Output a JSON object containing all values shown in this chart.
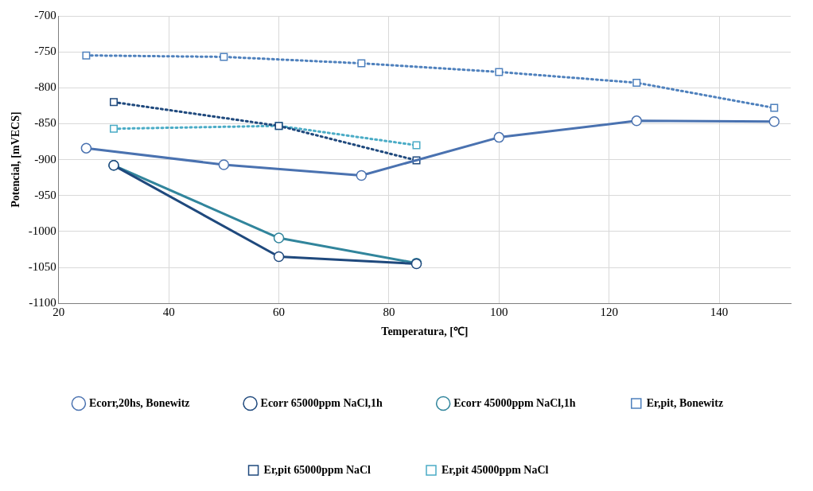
{
  "chart_data": {
    "type": "line",
    "xlabel": "Temperatura, [℃]",
    "ylabel": "Potencial, [mVECS]",
    "xlim": [
      20,
      153
    ],
    "xticks": [
      20,
      40,
      60,
      80,
      100,
      120,
      140
    ],
    "ylim": [
      -1100,
      -700
    ],
    "yticks": [
      -1100,
      -1050,
      -1000,
      -950,
      -900,
      -850,
      -800,
      -750,
      -700
    ],
    "grid": true,
    "legend": "bottom",
    "series": [
      {
        "name": "Ecorr,20hs, Bonewitz",
        "color": "#4a72b0",
        "x": [
          25,
          50,
          75,
          100,
          125,
          150
        ],
        "values": [
          -884,
          -907,
          -922,
          -869,
          -846,
          -847
        ],
        "marker": "circle",
        "line_style": "solid"
      },
      {
        "name": "Ecorr 65000ppm NaCl,1h",
        "color": "#1f497d",
        "x": [
          30,
          60,
          85
        ],
        "values": [
          -908,
          -1035,
          -1045
        ],
        "marker": "circle",
        "line_style": "solid"
      },
      {
        "name": "Ecorr 45000ppm NaCl,1h",
        "color": "#31859c",
        "x": [
          30,
          60,
          85
        ],
        "values": [
          -908,
          -1009,
          -1044
        ],
        "marker": "circle",
        "line_style": "solid"
      },
      {
        "name": "Er,pit, Bonewitz",
        "color": "#4f81bd",
        "x": [
          25,
          50,
          75,
          100,
          125,
          150
        ],
        "values": [
          -755,
          -757,
          -766,
          -778,
          -793,
          -828
        ],
        "marker": "square",
        "line_style": "dotted"
      },
      {
        "name": "Er,pit 65000ppm NaCl",
        "color": "#1f497d",
        "x": [
          30,
          60,
          85
        ],
        "values": [
          -820,
          -853,
          -901
        ],
        "marker": "square",
        "line_style": "dotted"
      },
      {
        "name": "Er,pit 45000ppm NaCl",
        "color": "#4bacc6",
        "x": [
          30,
          60,
          85
        ],
        "values": [
          -857,
          -853,
          -880
        ],
        "marker": "square",
        "line_style": "dotted"
      }
    ]
  }
}
